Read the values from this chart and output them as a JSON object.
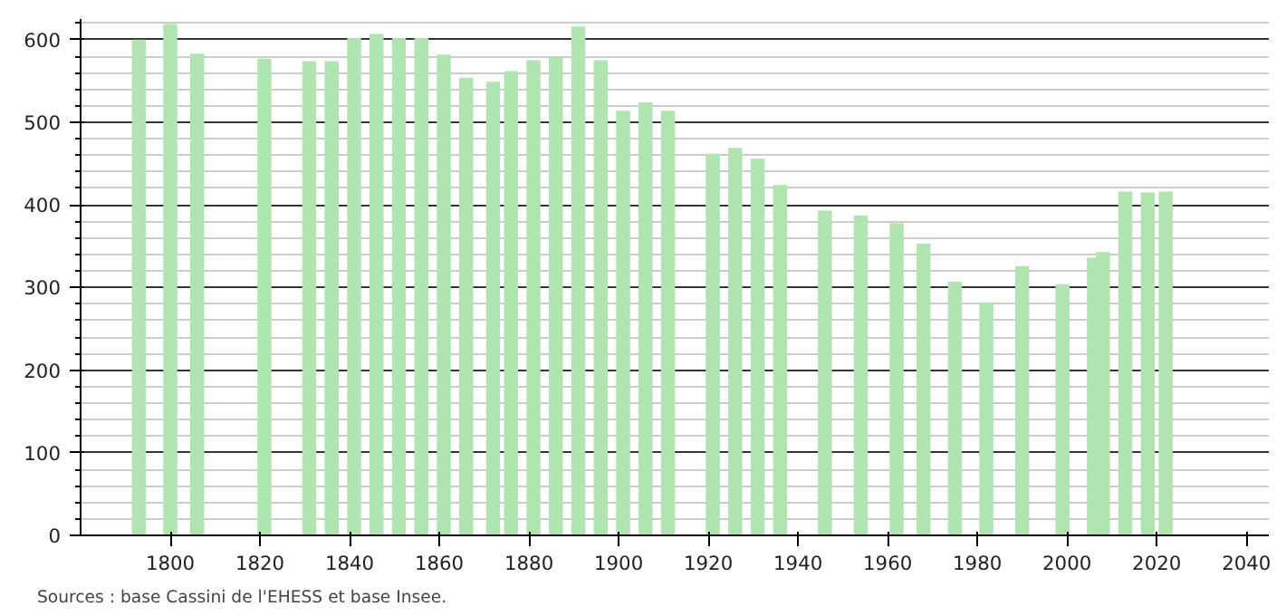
{
  "chart_data": {
    "type": "bar",
    "x": [
      1793,
      1800,
      1806,
      1821,
      1831,
      1836,
      1841,
      1846,
      1851,
      1856,
      1861,
      1866,
      1872,
      1876,
      1881,
      1886,
      1891,
      1896,
      1901,
      1906,
      1911,
      1921,
      1926,
      1931,
      1936,
      1946,
      1954,
      1962,
      1968,
      1975,
      1982,
      1990,
      1999,
      2006,
      2008,
      2013,
      2018,
      2022
    ],
    "values": [
      600,
      619,
      583,
      577,
      574,
      574,
      602,
      607,
      602,
      602,
      582,
      554,
      549,
      562,
      575,
      579,
      616,
      575,
      514,
      524,
      514,
      462,
      469,
      456,
      424,
      393,
      387,
      378,
      353,
      307,
      282,
      326,
      304,
      336,
      343,
      416,
      415,
      416
    ],
    "color": "#b0e4b0",
    "xlim": [
      1780,
      2045
    ],
    "xticks": [
      1800,
      1820,
      1840,
      1860,
      1880,
      1900,
      1920,
      1940,
      1960,
      1980,
      2000,
      2020,
      2040
    ],
    "ylim": [
      0,
      625
    ],
    "yticks": [
      0,
      100,
      200,
      300,
      400,
      500,
      600
    ],
    "grid": "y",
    "annotations": [
      "Sources : base Cassini de l'EHESS et base Insee."
    ]
  }
}
